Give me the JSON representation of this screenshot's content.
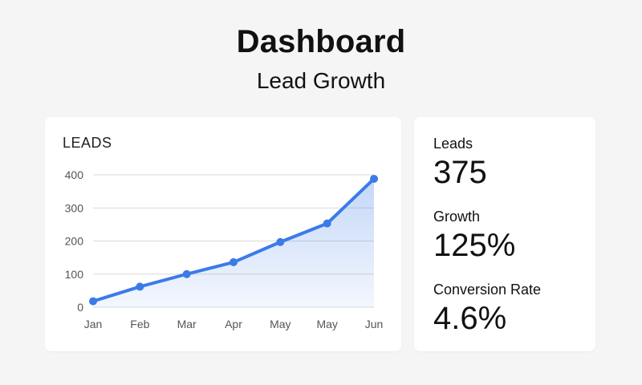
{
  "header": {
    "title": "Dashboard",
    "subtitle": "Lead Growth"
  },
  "stats": [
    {
      "label": "Leads",
      "value": "375"
    },
    {
      "label": "Growth",
      "value": "125%"
    },
    {
      "label": "Conversion Rate",
      "value": "4.6%"
    }
  ],
  "colors": {
    "accent": "#3b7be8",
    "area_fill": "#dbe7fb",
    "gridline": "#d9d9d9",
    "tick_text": "#555555"
  },
  "chart_data": {
    "type": "area",
    "title": "LEADS",
    "xlabel": "",
    "ylabel": "",
    "categories": [
      "Jan",
      "Feb",
      "Mar",
      "Apr",
      "May",
      "May",
      "Jun"
    ],
    "values": [
      18,
      62,
      100,
      136,
      197,
      253,
      388
    ],
    "ylim": [
      0,
      400
    ],
    "yticks": [
      0,
      100,
      200,
      300,
      400
    ],
    "grid": true,
    "legend": "none"
  }
}
